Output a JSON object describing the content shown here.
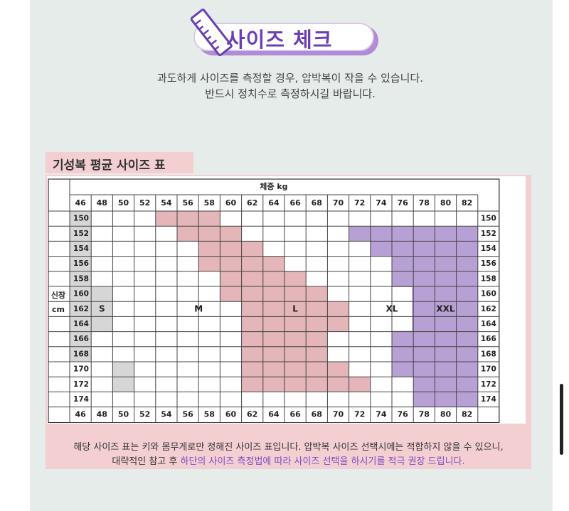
{
  "header": {
    "title": "사이즈 체크",
    "intro_line1": "과도하게 사이즈를 측정할 경우, 압박복이 작을 수 있습니다.",
    "intro_line2": "반드시 정치수로 측정하시길 바랍니다."
  },
  "table": {
    "label": "기성복 평균 사이즈 표",
    "weight_header": "체중 kg",
    "height_header_line1": "신장",
    "height_header_line2": "cm",
    "weights": [
      "46",
      "48",
      "50",
      "52",
      "54",
      "56",
      "58",
      "60",
      "62",
      "64",
      "66",
      "68",
      "70",
      "72",
      "74",
      "76",
      "78",
      "80",
      "82"
    ],
    "heights": [
      "150",
      "152",
      "154",
      "156",
      "158",
      "160",
      "162",
      "164",
      "166",
      "168",
      "170",
      "172",
      "174"
    ],
    "size_labels": {
      "S": "S",
      "M": "M",
      "L": "L",
      "XL": "XL",
      "XXL": "XXL"
    },
    "colors": {
      "S": "#d6d6d6",
      "M": "#ffffff",
      "L": "#e4b5b9",
      "XL": "#ffffff",
      "XXL": "#b7a0d3"
    }
  },
  "footnote": {
    "line1": "해당 사이즈 표는 키와 몸무게로만 정해진 사이즈 표입니다. 압박복 사이즈 선택시에는 적합하지 않을 수 있으니,",
    "line2_normal": "대략적인 참고 후 ",
    "line2_highlight": "하단의 사이즈 측정법에 따라 사이즈 선택을 하시기를 적극 권장 드립니다."
  }
}
